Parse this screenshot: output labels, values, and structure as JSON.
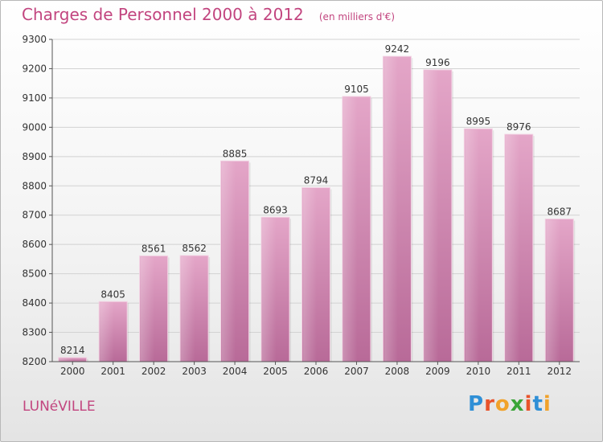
{
  "chart_data": {
    "type": "bar",
    "title": "Charges de Personnel 2000 à 2012",
    "subtitle": "(en milliers d'€)",
    "categories": [
      "2000",
      "2001",
      "2002",
      "2003",
      "2004",
      "2005",
      "2006",
      "2007",
      "2008",
      "2009",
      "2010",
      "2011",
      "2012"
    ],
    "values": [
      8214,
      8405,
      8561,
      8562,
      8885,
      8693,
      8794,
      9105,
      9242,
      9196,
      8995,
      8976,
      8687
    ],
    "ylim": [
      8200,
      9300
    ],
    "yticks": [
      8200,
      8300,
      8400,
      8500,
      8600,
      8700,
      8800,
      8900,
      9000,
      9100,
      9200,
      9300
    ],
    "grid": true,
    "bar_color": "#d88bb4"
  },
  "footer": {
    "city": "LUNéVILLE",
    "logo": "Proxiti"
  }
}
